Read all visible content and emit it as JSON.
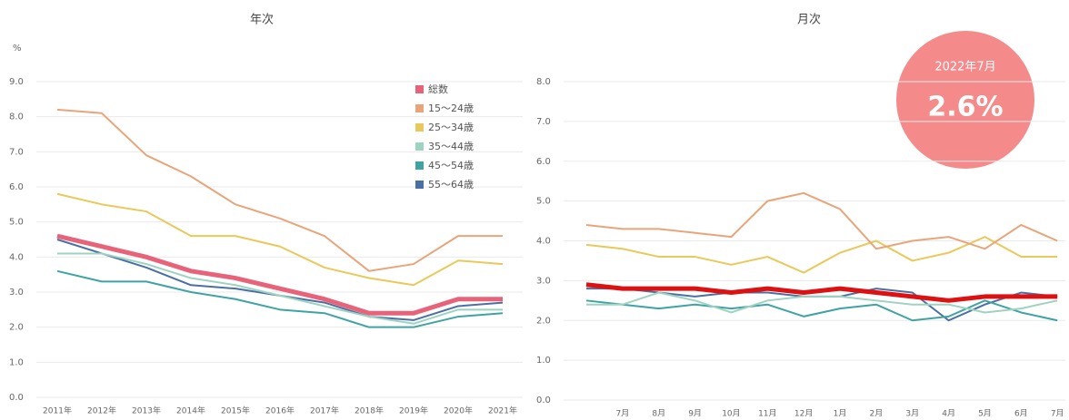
{
  "badge": {
    "label": "2022年7月",
    "value": "2.6%"
  },
  "chart_data": [
    {
      "type": "line",
      "title": "年次",
      "y_label": "%",
      "categories": [
        "2011年",
        "2012年",
        "2013年",
        "2014年",
        "2015年",
        "2016年",
        "2017年",
        "2018年",
        "2019年",
        "2020年",
        "2021年"
      ],
      "ylim": [
        0,
        9
      ],
      "yticks": [
        {
          "value": 0,
          "label": "0.0"
        },
        {
          "value": 1,
          "label": "1.0"
        },
        {
          "value": 2,
          "label": "2.0"
        },
        {
          "value": 3,
          "label": "3.0"
        },
        {
          "value": 4,
          "label": "4.0"
        },
        {
          "value": 5,
          "label": "5.0"
        },
        {
          "value": 6,
          "label": "6.0"
        },
        {
          "value": 7,
          "label": "7.0"
        },
        {
          "value": 8,
          "label": "8.0"
        },
        {
          "value": 9,
          "label": "9.0"
        }
      ],
      "grid": true,
      "legend": "upper right",
      "series": [
        {
          "name": "総数",
          "color": "#e8637a",
          "values": [
            4.6,
            4.3,
            4.0,
            3.6,
            3.4,
            3.1,
            2.8,
            2.4,
            2.4,
            2.8,
            2.8
          ]
        },
        {
          "name": "15～24歳",
          "color": "#e9a57a",
          "values": [
            8.2,
            8.1,
            6.9,
            6.3,
            5.5,
            5.1,
            4.6,
            3.6,
            3.8,
            4.6,
            4.6
          ]
        },
        {
          "name": "25～34歳",
          "color": "#e8c95a",
          "values": [
            5.8,
            5.5,
            5.3,
            4.6,
            4.6,
            4.3,
            3.7,
            3.4,
            3.2,
            3.9,
            3.8
          ]
        },
        {
          "name": "35～44歳",
          "color": "#9dd3c0",
          "values": [
            4.1,
            4.1,
            3.8,
            3.4,
            3.2,
            2.9,
            2.6,
            2.3,
            2.1,
            2.5,
            2.5
          ]
        },
        {
          "name": "45～54歳",
          "color": "#3fa3a3",
          "values": [
            3.6,
            3.3,
            3.3,
            3.0,
            2.8,
            2.5,
            2.4,
            2.0,
            2.0,
            2.3,
            2.4
          ]
        },
        {
          "name": "55～64歳",
          "color": "#4a6fa5",
          "values": [
            4.5,
            4.1,
            3.7,
            3.2,
            3.1,
            2.9,
            2.7,
            2.3,
            2.2,
            2.6,
            2.7
          ]
        }
      ]
    },
    {
      "type": "line",
      "title": "月次",
      "categories": [
        null,
        "7月",
        "8月",
        "9月",
        "10月",
        "11月",
        "12月",
        "1月",
        "2月",
        "3月",
        "4月",
        "5月",
        "6月",
        "7月"
      ],
      "ylim": [
        0,
        8
      ],
      "yticks": [
        {
          "value": 0,
          "label": "0.0"
        },
        {
          "value": 1,
          "label": "1.0"
        },
        {
          "value": 2,
          "label": "2.0"
        },
        {
          "value": 3,
          "label": "3.0"
        },
        {
          "value": 4,
          "label": "4.0"
        },
        {
          "value": 5,
          "label": "5.0"
        },
        {
          "value": 6,
          "label": "6.0"
        },
        {
          "value": 7,
          "label": "7.0"
        },
        {
          "value": 8,
          "label": "8.0"
        }
      ],
      "grid": true,
      "series": [
        {
          "color": "#dd1111",
          "values": [
            2.9,
            2.8,
            2.8,
            2.8,
            2.7,
            2.8,
            2.7,
            2.8,
            2.7,
            2.6,
            2.5,
            2.6,
            2.6,
            2.6
          ]
        },
        {
          "color": "#e9a57a",
          "values": [
            4.4,
            4.3,
            4.3,
            4.2,
            4.1,
            5.0,
            5.2,
            4.8,
            3.8,
            4.0,
            4.1,
            3.8,
            4.4,
            4.0
          ]
        },
        {
          "color": "#e8c95a",
          "values": [
            3.9,
            3.8,
            3.6,
            3.6,
            3.4,
            3.6,
            3.2,
            3.7,
            4.0,
            3.5,
            3.7,
            4.1,
            3.6,
            3.6
          ]
        },
        {
          "color": "#9dd3c0",
          "values": [
            2.4,
            2.4,
            2.7,
            2.5,
            2.2,
            2.5,
            2.6,
            2.6,
            2.5,
            2.4,
            2.4,
            2.2,
            2.3,
            2.5
          ]
        },
        {
          "color": "#3fa3a3",
          "values": [
            2.5,
            2.4,
            2.3,
            2.4,
            2.3,
            2.4,
            2.1,
            2.3,
            2.4,
            2.0,
            2.1,
            2.5,
            2.2,
            2.0
          ]
        },
        {
          "color": "#4a6fa5",
          "values": [
            2.8,
            2.8,
            2.7,
            2.6,
            2.7,
            2.7,
            2.6,
            2.6,
            2.8,
            2.7,
            2.0,
            2.4,
            2.7,
            2.6
          ]
        }
      ]
    }
  ]
}
